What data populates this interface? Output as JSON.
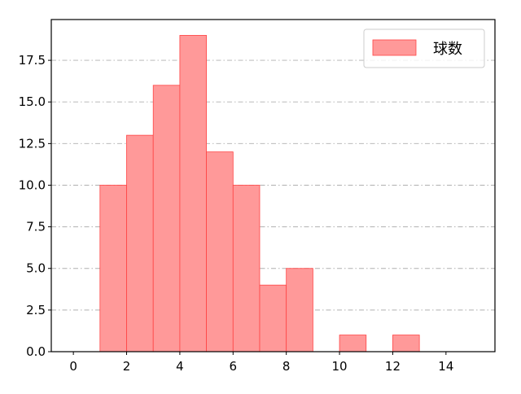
{
  "chart_data": {
    "type": "bar",
    "subtype": "histogram",
    "bin_width": 1,
    "bin_starts": [
      1,
      2,
      3,
      4,
      5,
      6,
      7,
      8,
      9,
      10,
      11,
      12
    ],
    "values": [
      10,
      13,
      16,
      19,
      12,
      10,
      4,
      5,
      0,
      1,
      0,
      1
    ],
    "series": [
      {
        "name": "球数",
        "color": "#ff9999",
        "edge_color": "#ff4444"
      }
    ],
    "xlim": [
      -0.83,
      15.84
    ],
    "ylim": [
      0,
      19.95
    ],
    "x_ticks": [
      0,
      2,
      4,
      6,
      8,
      10,
      12,
      14
    ],
    "x_tick_labels": [
      "0",
      "2",
      "4",
      "6",
      "8",
      "10",
      "12",
      "14"
    ],
    "y_ticks": [
      0,
      2.5,
      5,
      7.5,
      10,
      12.5,
      15,
      17.5
    ],
    "y_tick_labels": [
      "0.0",
      "2.5",
      "5.0",
      "7.5",
      "10.0",
      "12.5",
      "15.0",
      "17.5"
    ],
    "grid": "horizontal dash-dot",
    "legend": {
      "position": "top-right",
      "entries": [
        "球数"
      ]
    },
    "title": "",
    "xlabel": "",
    "ylabel": ""
  }
}
